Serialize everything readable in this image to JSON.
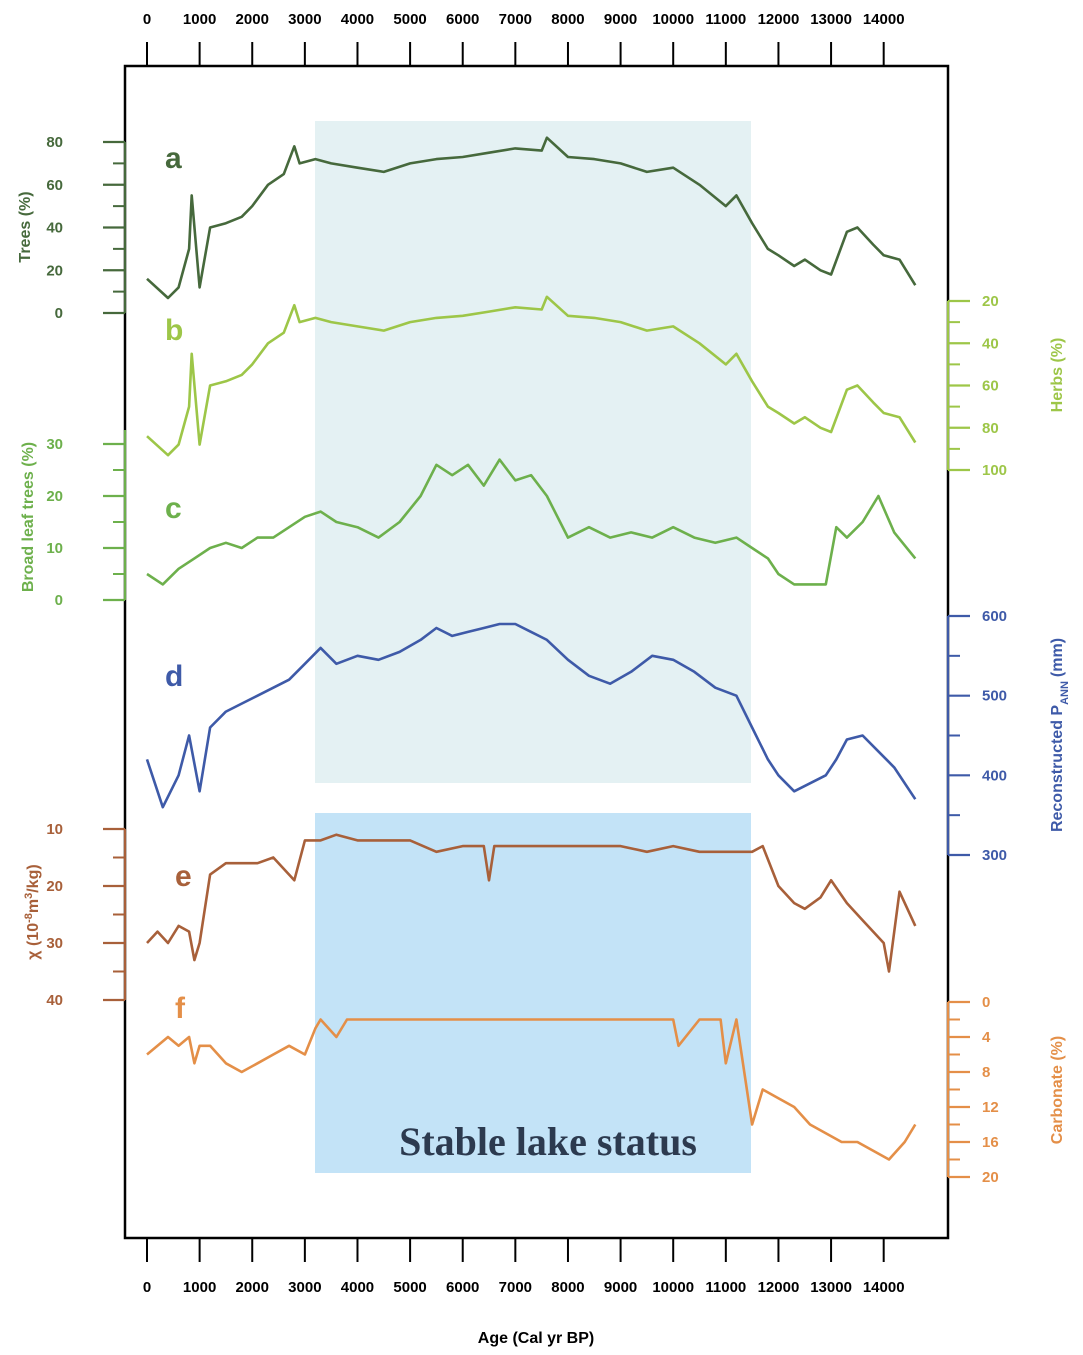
{
  "chart_data": {
    "type": "line",
    "x_axis": {
      "title": "Age (Cal yr BP)",
      "range": [
        0,
        14500
      ],
      "ticks": [
        "0",
        "1000",
        "2000",
        "3000",
        "4000",
        "5000",
        "6000",
        "7000",
        "8000",
        "9000",
        "10000",
        "11000",
        "12000",
        "13000",
        "14000"
      ]
    },
    "annotation": "Stable lake status",
    "shaded_intervals": [
      {
        "from": 3200,
        "to": 11500,
        "color": "#e4f1f3"
      },
      {
        "from": 3200,
        "to": 11500,
        "color": "#c3e3f7"
      }
    ],
    "colors": {
      "a": "#46693c",
      "b": "#9dc648",
      "c": "#6db04c",
      "d": "#3e5aa8",
      "e": "#a8603a",
      "f": "#e48f48"
    },
    "panels": [
      {
        "letter": "a",
        "ylabel": "Trees (%)",
        "axis_side": "left",
        "ylim": [
          0,
          80
        ],
        "ticks": [
          "0",
          "20",
          "40",
          "60",
          "80"
        ],
        "tick_values": [
          0,
          20,
          40,
          60,
          80
        ],
        "x": [
          0,
          400,
          600,
          800,
          850,
          1000,
          1200,
          1500,
          1800,
          2000,
          2300,
          2600,
          2800,
          2900,
          3200,
          3500,
          4000,
          4500,
          5000,
          5500,
          6000,
          6500,
          7000,
          7500,
          7600,
          8000,
          8500,
          9000,
          9500,
          10000,
          10500,
          11000,
          11200,
          11500,
          11800,
          12000,
          12300,
          12500,
          12800,
          13000,
          13300,
          13500,
          13800,
          14000,
          14300,
          14600
        ],
        "values": [
          16,
          7,
          12,
          30,
          55,
          12,
          40,
          42,
          45,
          50,
          60,
          65,
          78,
          70,
          72,
          70,
          68,
          66,
          70,
          72,
          73,
          75,
          77,
          76,
          82,
          73,
          72,
          70,
          66,
          68,
          60,
          50,
          55,
          42,
          30,
          27,
          22,
          25,
          20,
          18,
          38,
          40,
          32,
          27,
          25,
          13
        ]
      },
      {
        "letter": "b",
        "ylabel": "Herbs (%)",
        "axis_side": "right",
        "ylim": [
          100,
          20
        ],
        "inverted": true,
        "ticks": [
          "20",
          "40",
          "60",
          "80",
          "100"
        ],
        "tick_values": [
          20,
          40,
          60,
          80,
          100
        ],
        "x": [
          0,
          400,
          600,
          800,
          850,
          1000,
          1200,
          1500,
          1800,
          2000,
          2300,
          2600,
          2800,
          2900,
          3200,
          3500,
          4000,
          4500,
          5000,
          5500,
          6000,
          6500,
          7000,
          7500,
          7600,
          8000,
          8500,
          9000,
          9500,
          10000,
          10500,
          11000,
          11200,
          11500,
          11800,
          12000,
          12300,
          12500,
          12800,
          13000,
          13300,
          13500,
          13800,
          14000,
          14300,
          14600
        ],
        "values": [
          84,
          93,
          88,
          70,
          45,
          88,
          60,
          58,
          55,
          50,
          40,
          35,
          22,
          30,
          28,
          30,
          32,
          34,
          30,
          28,
          27,
          25,
          23,
          24,
          18,
          27,
          28,
          30,
          34,
          32,
          40,
          50,
          45,
          58,
          70,
          73,
          78,
          75,
          80,
          82,
          62,
          60,
          68,
          73,
          75,
          87
        ]
      },
      {
        "letter": "c",
        "ylabel": "Broad leaf trees (%)",
        "axis_side": "left",
        "ylim": [
          0,
          30
        ],
        "ticks": [
          "0",
          "10",
          "20",
          "30"
        ],
        "tick_values": [
          0,
          10,
          20,
          30
        ],
        "x": [
          0,
          300,
          600,
          900,
          1200,
          1500,
          1800,
          2100,
          2400,
          2700,
          3000,
          3300,
          3600,
          4000,
          4400,
          4800,
          5200,
          5500,
          5800,
          6100,
          6400,
          6700,
          7000,
          7300,
          7600,
          8000,
          8400,
          8800,
          9200,
          9600,
          10000,
          10400,
          10800,
          11200,
          11500,
          11800,
          12000,
          12300,
          12600,
          12900,
          13100,
          13300,
          13600,
          13900,
          14200,
          14600
        ],
        "values": [
          5,
          3,
          6,
          8,
          10,
          11,
          10,
          12,
          12,
          14,
          16,
          17,
          15,
          14,
          12,
          15,
          20,
          26,
          24,
          26,
          22,
          27,
          23,
          24,
          20,
          12,
          14,
          12,
          13,
          12,
          14,
          12,
          11,
          12,
          10,
          8,
          5,
          3,
          3,
          3,
          14,
          12,
          15,
          20,
          13,
          8
        ]
      },
      {
        "letter": "d",
        "ylabel": "Reconstructed P",
        "ylabel_sub": "ANN",
        "ylabel_unit": "(mm)",
        "axis_side": "right",
        "ylim": [
          300,
          600
        ],
        "ticks": [
          "300",
          "400",
          "500",
          "600"
        ],
        "tick_values": [
          300,
          400,
          500,
          600
        ],
        "x": [
          0,
          300,
          600,
          800,
          1000,
          1200,
          1500,
          1800,
          2100,
          2400,
          2700,
          3000,
          3300,
          3600,
          4000,
          4400,
          4800,
          5200,
          5500,
          5800,
          6100,
          6400,
          6700,
          7000,
          7300,
          7600,
          8000,
          8400,
          8800,
          9200,
          9600,
          10000,
          10400,
          10800,
          11200,
          11500,
          11800,
          12000,
          12300,
          12600,
          12900,
          13100,
          13300,
          13600,
          13900,
          14200,
          14600
        ],
        "values": [
          420,
          360,
          400,
          450,
          380,
          460,
          480,
          490,
          500,
          510,
          520,
          540,
          560,
          540,
          550,
          545,
          555,
          570,
          585,
          575,
          580,
          585,
          590,
          590,
          580,
          570,
          545,
          525,
          515,
          530,
          550,
          545,
          530,
          510,
          500,
          460,
          420,
          400,
          380,
          390,
          400,
          420,
          445,
          450,
          430,
          410,
          370
        ]
      },
      {
        "letter": "e",
        "ylabel": "χ (10",
        "ylabel_sup": "-8",
        "ylabel_unit": "m",
        "ylabel_sup2": "3",
        "ylabel_tail": "/kg)",
        "axis_side": "left",
        "ylim": [
          40,
          10
        ],
        "inverted": true,
        "ticks": [
          "10",
          "20",
          "30",
          "40"
        ],
        "tick_values": [
          10,
          20,
          30,
          40
        ],
        "x": [
          0,
          200,
          400,
          600,
          800,
          900,
          1000,
          1200,
          1500,
          1800,
          2100,
          2400,
          2700,
          2800,
          3000,
          3300,
          3600,
          4000,
          4500,
          5000,
          5500,
          6000,
          6400,
          6500,
          6600,
          7000,
          7500,
          8000,
          8500,
          9000,
          9500,
          10000,
          10500,
          11000,
          11500,
          11700,
          12000,
          12300,
          12500,
          12800,
          13000,
          13300,
          13600,
          14000,
          14100,
          14300,
          14600
        ],
        "values": [
          30,
          28,
          30,
          27,
          28,
          33,
          30,
          18,
          16,
          16,
          16,
          15,
          18,
          19,
          12,
          12,
          11,
          12,
          12,
          12,
          14,
          13,
          13,
          19,
          13,
          13,
          13,
          13,
          13,
          13,
          14,
          13,
          14,
          14,
          14,
          13,
          20,
          23,
          24,
          22,
          19,
          23,
          26,
          30,
          35,
          21,
          27
        ]
      },
      {
        "letter": "f",
        "ylabel": "Carbonate (%)",
        "axis_side": "right",
        "ylim": [
          20,
          0
        ],
        "inverted": true,
        "ticks": [
          "0",
          "4",
          "8",
          "12",
          "16",
          "20"
        ],
        "tick_values": [
          0,
          4,
          8,
          12,
          16,
          20
        ],
        "x": [
          0,
          200,
          400,
          600,
          800,
          900,
          1000,
          1200,
          1500,
          1800,
          2100,
          2400,
          2700,
          3000,
          3200,
          3300,
          3600,
          3800,
          4000,
          4500,
          5000,
          5500,
          6000,
          6500,
          7000,
          7500,
          8000,
          8500,
          9000,
          9500,
          10000,
          10100,
          10500,
          10900,
          11000,
          11200,
          11500,
          11700,
          12000,
          12300,
          12600,
          12900,
          13200,
          13500,
          13800,
          14100,
          14400,
          14600
        ],
        "values": [
          6,
          5,
          4,
          5,
          4,
          7,
          5,
          5,
          7,
          8,
          7,
          6,
          5,
          6,
          3,
          2,
          4,
          2,
          2,
          2,
          2,
          2,
          2,
          2,
          2,
          2,
          2,
          2,
          2,
          2,
          2,
          5,
          2,
          2,
          7,
          2,
          14,
          10,
          11,
          12,
          14,
          15,
          16,
          16,
          17,
          18,
          16,
          14
        ]
      }
    ]
  }
}
